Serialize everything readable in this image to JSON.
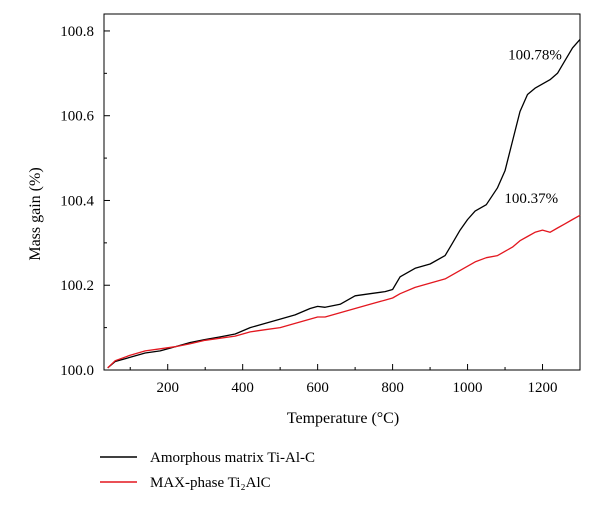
{
  "chart_data": {
    "type": "line",
    "xlabel": "Temperature (°C)",
    "ylabel": "Mass gain (%)",
    "xlim": [
      30,
      1300
    ],
    "ylim": [
      100.0,
      100.84
    ],
    "x_ticks": [
      200,
      400,
      600,
      800,
      1000,
      1200
    ],
    "y_ticks": [
      100.0,
      100.2,
      100.4,
      100.6,
      100.8
    ],
    "grid": false,
    "legend_position": "bottom-left-below-plot",
    "series": [
      {
        "name": "Amorphous matrix Ti-Al-C",
        "color": "#000000",
        "x": [
          40,
          60,
          100,
          140,
          180,
          220,
          260,
          300,
          340,
          380,
          420,
          460,
          500,
          540,
          580,
          600,
          620,
          660,
          700,
          740,
          780,
          800,
          820,
          860,
          900,
          940,
          960,
          980,
          1000,
          1020,
          1050,
          1080,
          1100,
          1120,
          1140,
          1160,
          1180,
          1200,
          1220,
          1240,
          1260,
          1280,
          1300
        ],
        "y": [
          100.005,
          100.02,
          100.03,
          100.04,
          100.045,
          100.055,
          100.065,
          100.072,
          100.078,
          100.085,
          100.1,
          100.11,
          100.12,
          100.13,
          100.145,
          100.15,
          100.148,
          100.155,
          100.175,
          100.18,
          100.185,
          100.19,
          100.22,
          100.24,
          100.25,
          100.27,
          100.3,
          100.33,
          100.355,
          100.375,
          100.39,
          100.43,
          100.47,
          100.54,
          100.61,
          100.65,
          100.665,
          100.675,
          100.685,
          100.7,
          100.73,
          100.76,
          100.78
        ]
      },
      {
        "name": "MAX-phase Ti₂AlC",
        "color": "#e3171f",
        "x": [
          40,
          60,
          100,
          140,
          180,
          220,
          260,
          300,
          340,
          380,
          420,
          460,
          500,
          540,
          580,
          600,
          620,
          660,
          700,
          740,
          780,
          800,
          820,
          860,
          900,
          940,
          980,
          1000,
          1020,
          1050,
          1080,
          1100,
          1120,
          1140,
          1160,
          1180,
          1200,
          1220,
          1240,
          1260,
          1280,
          1300
        ],
        "y": [
          100.005,
          100.022,
          100.035,
          100.045,
          100.05,
          100.055,
          100.062,
          100.07,
          100.075,
          100.08,
          100.09,
          100.095,
          100.1,
          100.11,
          100.12,
          100.125,
          100.125,
          100.135,
          100.145,
          100.155,
          100.165,
          100.17,
          100.18,
          100.195,
          100.205,
          100.215,
          100.235,
          100.245,
          100.255,
          100.265,
          100.27,
          100.28,
          100.29,
          100.305,
          100.315,
          100.325,
          100.33,
          100.325,
          100.335,
          100.345,
          100.355,
          100.365
        ]
      }
    ],
    "annotations": [
      {
        "text": "100.78%",
        "series": 0,
        "x": 1180,
        "y": 100.78
      },
      {
        "text": "100.37%",
        "series": 1,
        "x": 1170,
        "y": 100.37
      }
    ]
  }
}
